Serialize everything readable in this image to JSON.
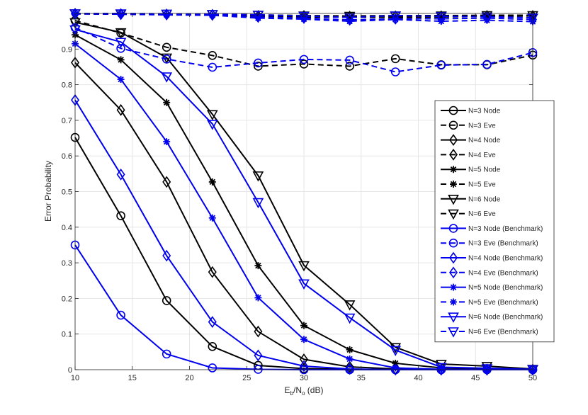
{
  "chart_data": {
    "type": "line",
    "title": "",
    "xlabel": "E_b/N_o (dB)",
    "xlabel_parts": {
      "main": "E",
      "sub1": "b",
      "slash": "/N",
      "sub2": "o",
      "unit": " (dB)"
    },
    "ylabel": "Error Probability",
    "xlim": [
      10,
      50
    ],
    "ylim": [
      0,
      1
    ],
    "xticks": [
      10,
      15,
      20,
      25,
      30,
      35,
      40,
      45,
      50
    ],
    "yticks": [
      0,
      0.1,
      0.2,
      0.3,
      0.4,
      0.5,
      0.6,
      0.7,
      0.8,
      0.9
    ],
    "ytick_labels": [
      "0",
      "0.1",
      "0.2",
      "0.3",
      "0.4",
      "0.5",
      "0.6",
      "0.7",
      "0.8",
      "0.9"
    ],
    "grid": true,
    "legend_position": "right",
    "x": [
      10,
      14,
      18,
      22,
      26,
      30,
      34,
      38,
      42,
      46,
      50
    ],
    "series": [
      {
        "name": "N=3 Node",
        "color": "#000000",
        "dash": false,
        "marker": "circle",
        "values": [
          0.652,
          0.432,
          0.194,
          0.065,
          0.012,
          0.003,
          0.001,
          0.0,
          0.0,
          0.0,
          0.0
        ]
      },
      {
        "name": "N=3 Eve",
        "color": "#000000",
        "dash": true,
        "marker": "circle",
        "values": [
          0.98,
          0.945,
          0.905,
          0.882,
          0.852,
          0.858,
          0.852,
          0.873,
          0.856,
          0.856,
          0.883
        ]
      },
      {
        "name": "N=4 Node",
        "color": "#000000",
        "dash": false,
        "marker": "diamond",
        "values": [
          0.862,
          0.729,
          0.527,
          0.274,
          0.107,
          0.029,
          0.008,
          0.002,
          0.0,
          0.0,
          0.0
        ]
      },
      {
        "name": "N=4 Eve",
        "color": "#000000",
        "dash": true,
        "marker": "diamond",
        "values": [
          0.999,
          0.998,
          0.997,
          0.996,
          0.993,
          0.993,
          0.991,
          0.992,
          0.992,
          0.993,
          0.993
        ]
      },
      {
        "name": "N=5 Node",
        "color": "#000000",
        "dash": false,
        "marker": "asterisk",
        "values": [
          0.94,
          0.87,
          0.75,
          0.527,
          0.292,
          0.124,
          0.056,
          0.018,
          0.005,
          0.002,
          0.0
        ]
      },
      {
        "name": "N=5 Eve",
        "color": "#000000",
        "dash": true,
        "marker": "asterisk",
        "values": [
          0.999,
          0.998,
          0.997,
          0.995,
          0.993,
          0.99,
          0.99,
          0.989,
          0.99,
          0.992,
          0.993
        ]
      },
      {
        "name": "N=6 Node",
        "color": "#000000",
        "dash": false,
        "marker": "triangle-down",
        "values": [
          0.975,
          0.947,
          0.876,
          0.717,
          0.545,
          0.293,
          0.183,
          0.063,
          0.016,
          0.01,
          0.002
        ]
      },
      {
        "name": "N=6 Eve",
        "color": "#000000",
        "dash": true,
        "marker": "triangle-down",
        "values": [
          1.0,
          0.999,
          0.999,
          0.998,
          0.996,
          0.994,
          0.993,
          0.994,
          0.994,
          0.995,
          0.995
        ]
      },
      {
        "name": "N=3 Node (Benchmark)",
        "color": "#0000ee",
        "dash": false,
        "marker": "circle",
        "values": [
          0.35,
          0.153,
          0.044,
          0.005,
          0.001,
          0.0,
          0.0,
          0.0,
          0.0,
          0.0,
          0.0
        ]
      },
      {
        "name": "N=3 Eve (Benchmark)",
        "color": "#0000ee",
        "dash": true,
        "marker": "circle",
        "values": [
          0.96,
          0.902,
          0.872,
          0.849,
          0.861,
          0.871,
          0.869,
          0.836,
          0.855,
          0.857,
          0.89
        ]
      },
      {
        "name": "N=4 Node (Benchmark)",
        "color": "#0000ee",
        "dash": false,
        "marker": "diamond",
        "values": [
          0.757,
          0.548,
          0.32,
          0.134,
          0.04,
          0.01,
          0.002,
          0.0,
          0.0,
          0.0,
          0.0
        ]
      },
      {
        "name": "N=4 Eve (Benchmark)",
        "color": "#0000ee",
        "dash": true,
        "marker": "diamond",
        "values": [
          0.999,
          0.998,
          0.997,
          0.996,
          0.99,
          0.987,
          0.982,
          0.985,
          0.985,
          0.987,
          0.983
        ]
      },
      {
        "name": "N=5 Node (Benchmark)",
        "color": "#0000ee",
        "dash": false,
        "marker": "asterisk",
        "values": [
          0.915,
          0.815,
          0.64,
          0.426,
          0.202,
          0.085,
          0.03,
          0.005,
          0.001,
          0.0,
          0.0
        ]
      },
      {
        "name": "N=5 Eve (Benchmark)",
        "color": "#0000ee",
        "dash": true,
        "marker": "asterisk",
        "values": [
          0.999,
          0.998,
          0.996,
          0.995,
          0.987,
          0.984,
          0.978,
          0.983,
          0.978,
          0.981,
          0.977
        ]
      },
      {
        "name": "N=6 Node (Benchmark)",
        "color": "#0000ee",
        "dash": false,
        "marker": "triangle-down",
        "values": [
          0.955,
          0.92,
          0.823,
          0.69,
          0.47,
          0.242,
          0.146,
          0.055,
          0.007,
          0.004,
          0.001
        ]
      },
      {
        "name": "N=6 Eve (Benchmark)",
        "color": "#0000ee",
        "dash": true,
        "marker": "triangle-down",
        "values": [
          1.0,
          1.0,
          0.999,
          0.998,
          0.996,
          0.993,
          0.989,
          0.994,
          0.992,
          0.991,
          0.988
        ]
      }
    ]
  }
}
